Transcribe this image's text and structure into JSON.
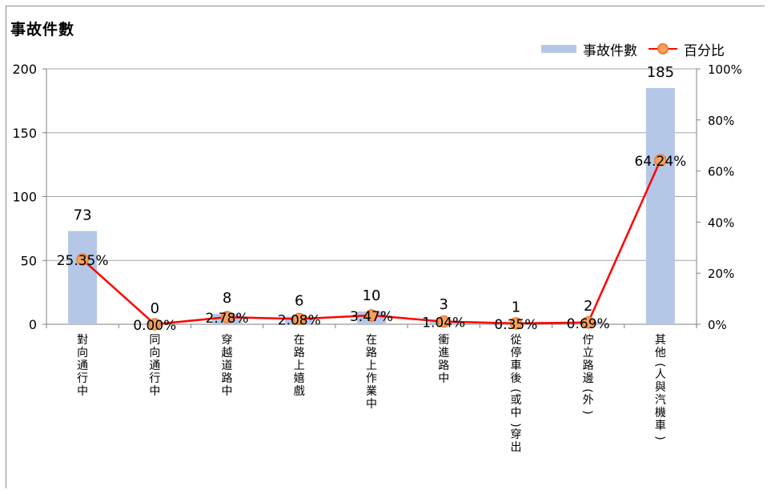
{
  "chart_data": {
    "type": "bar+line",
    "title": "事故件數",
    "categories": [
      "對向通行中",
      "同向通行中",
      "穿越道路中",
      "在路上嬉戲",
      "在路上作業中",
      "衝進路中",
      "從停車後(或中)穿出",
      "佇立路邊(外)",
      "其他(人與汽機車)"
    ],
    "series": [
      {
        "name": "事故件數",
        "type": "bar",
        "axis": "left",
        "color": "#b4c7e7",
        "values": [
          73,
          0,
          8,
          6,
          10,
          3,
          1,
          2,
          185
        ]
      },
      {
        "name": "百分比",
        "type": "line",
        "axis": "right",
        "color": "#ff0000",
        "marker_color": "#f4a15d",
        "values": [
          25.35,
          0.0,
          2.78,
          2.08,
          3.47,
          1.04,
          0.35,
          0.69,
          64.24
        ],
        "labels": [
          "25.35%",
          "0.00%",
          "2.78%",
          "2.08%",
          "3.47%",
          "1.04%",
          "0.35%",
          "0.69%",
          "64.24%"
        ]
      }
    ],
    "y_left": {
      "ylim": [
        0,
        200
      ],
      "ticks": [
        0,
        50,
        100,
        150,
        200
      ]
    },
    "y_right": {
      "ylim": [
        0,
        100
      ],
      "ticks": [
        "0%",
        "20%",
        "40%",
        "60%",
        "80%",
        "100%"
      ]
    },
    "grid": true,
    "legend": "top-right"
  }
}
